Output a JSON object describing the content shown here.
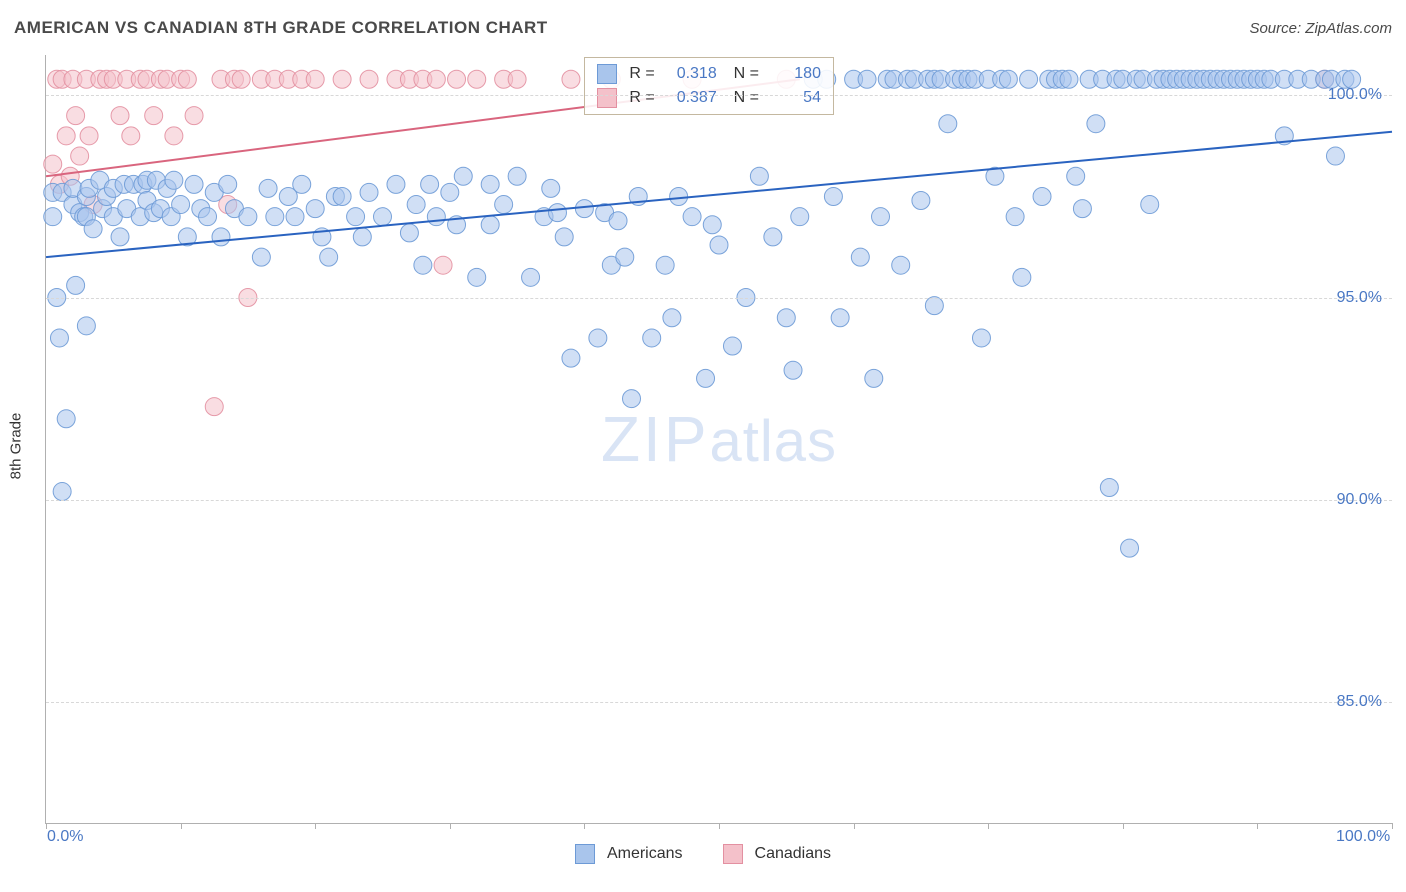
{
  "header": {
    "title": "AMERICAN VS CANADIAN 8TH GRADE CORRELATION CHART",
    "source": "Source: ZipAtlas.com"
  },
  "chart": {
    "type": "scatter",
    "ylabel": "8th Grade",
    "watermark": {
      "zip": "ZIP",
      "atlas": "atlas",
      "color": "#d9e4f5",
      "fontsize": 64
    },
    "xlim": [
      0,
      100
    ],
    "ylim": [
      82,
      101
    ],
    "ytick_positions": [
      85,
      90,
      95,
      100
    ],
    "ytick_labels": [
      "85.0%",
      "90.0%",
      "95.0%",
      "100.0%"
    ],
    "xtick_positions": [
      0,
      10,
      20,
      30,
      40,
      50,
      60,
      70,
      80,
      90,
      100
    ],
    "xtick_labels_shown": {
      "0": "0.0%",
      "100": "100.0%"
    },
    "grid_color": "#d8d8d8",
    "axis_color": "#b0b0b0",
    "ylabel_fontsize": 15,
    "tick_fontsize": 16,
    "tick_label_color": "#4a78c4",
    "background_color": "#ffffff",
    "marker_radius": 9,
    "marker_opacity": 0.55,
    "marker_stroke_opacity": 0.9,
    "series": [
      {
        "name": "Americans",
        "color_fill": "#a9c5ec",
        "color_stroke": "#6d9ad6",
        "R": "0.318",
        "N": "180",
        "regression": {
          "x1": 0,
          "y1": 96.0,
          "x2": 100,
          "y2": 99.1,
          "color": "#2a63c0",
          "width": 2
        },
        "points": [
          [
            0.5,
            97.6
          ],
          [
            0.5,
            97.0
          ],
          [
            0.8,
            95.0
          ],
          [
            1.0,
            94.0
          ],
          [
            1.2,
            97.6
          ],
          [
            1.2,
            90.2
          ],
          [
            1.5,
            92.0
          ],
          [
            2.0,
            97.3
          ],
          [
            2.0,
            97.7
          ],
          [
            2.2,
            95.3
          ],
          [
            2.5,
            97.1
          ],
          [
            2.8,
            97.0
          ],
          [
            3.0,
            97.5
          ],
          [
            3.0,
            97.0
          ],
          [
            3.0,
            94.3
          ],
          [
            3.2,
            97.7
          ],
          [
            3.5,
            96.7
          ],
          [
            4.0,
            97.9
          ],
          [
            4.2,
            97.2
          ],
          [
            4.5,
            97.5
          ],
          [
            5.0,
            97.0
          ],
          [
            5.0,
            97.7
          ],
          [
            5.5,
            96.5
          ],
          [
            5.8,
            97.8
          ],
          [
            6.0,
            97.2
          ],
          [
            6.5,
            97.8
          ],
          [
            7.0,
            97.0
          ],
          [
            7.2,
            97.8
          ],
          [
            7.5,
            97.4
          ],
          [
            7.5,
            97.9
          ],
          [
            8.0,
            97.1
          ],
          [
            8.2,
            97.9
          ],
          [
            8.5,
            97.2
          ],
          [
            9.0,
            97.7
          ],
          [
            9.3,
            97.0
          ],
          [
            9.5,
            97.9
          ],
          [
            10.0,
            97.3
          ],
          [
            10.5,
            96.5
          ],
          [
            11.0,
            97.8
          ],
          [
            11.5,
            97.2
          ],
          [
            12.0,
            97.0
          ],
          [
            12.5,
            97.6
          ],
          [
            13.0,
            96.5
          ],
          [
            13.5,
            97.8
          ],
          [
            14.0,
            97.2
          ],
          [
            15.0,
            97.0
          ],
          [
            16.0,
            96.0
          ],
          [
            16.5,
            97.7
          ],
          [
            17.0,
            97.0
          ],
          [
            18.0,
            97.5
          ],
          [
            18.5,
            97.0
          ],
          [
            19.0,
            97.8
          ],
          [
            20.0,
            97.2
          ],
          [
            20.5,
            96.5
          ],
          [
            21.0,
            96.0
          ],
          [
            21.5,
            97.5
          ],
          [
            22.0,
            97.5
          ],
          [
            23.0,
            97.0
          ],
          [
            23.5,
            96.5
          ],
          [
            24.0,
            97.6
          ],
          [
            25.0,
            97.0
          ],
          [
            26.0,
            97.8
          ],
          [
            27.0,
            96.6
          ],
          [
            27.5,
            97.3
          ],
          [
            28.0,
            95.8
          ],
          [
            28.5,
            97.8
          ],
          [
            29.0,
            97.0
          ],
          [
            30.0,
            97.6
          ],
          [
            30.5,
            96.8
          ],
          [
            31.0,
            98.0
          ],
          [
            32.0,
            95.5
          ],
          [
            33.0,
            97.8
          ],
          [
            33.0,
            96.8
          ],
          [
            34.0,
            97.3
          ],
          [
            35.0,
            98.0
          ],
          [
            36.0,
            95.5
          ],
          [
            37.0,
            97.0
          ],
          [
            37.5,
            97.7
          ],
          [
            38.0,
            97.1
          ],
          [
            38.5,
            96.5
          ],
          [
            39.0,
            93.5
          ],
          [
            40.0,
            97.2
          ],
          [
            41.0,
            94.0
          ],
          [
            41.5,
            97.1
          ],
          [
            42.0,
            95.8
          ],
          [
            42.5,
            96.9
          ],
          [
            43.0,
            96.0
          ],
          [
            43.5,
            92.5
          ],
          [
            44.0,
            97.5
          ],
          [
            45.0,
            94.0
          ],
          [
            46.0,
            95.8
          ],
          [
            46.5,
            94.5
          ],
          [
            47.0,
            97.5
          ],
          [
            48.0,
            97.0
          ],
          [
            49.0,
            93.0
          ],
          [
            49.5,
            96.8
          ],
          [
            50.0,
            96.3
          ],
          [
            51.0,
            93.8
          ],
          [
            52.0,
            95.0
          ],
          [
            53.0,
            98.0
          ],
          [
            54.0,
            96.5
          ],
          [
            55.0,
            94.5
          ],
          [
            55.5,
            93.2
          ],
          [
            56.0,
            97.0
          ],
          [
            57.0,
            100.4
          ],
          [
            58.0,
            100.4
          ],
          [
            58.5,
            97.5
          ],
          [
            59.0,
            94.5
          ],
          [
            60.0,
            100.4
          ],
          [
            60.5,
            96.0
          ],
          [
            61.0,
            100.4
          ],
          [
            61.5,
            93.0
          ],
          [
            62.0,
            97.0
          ],
          [
            62.5,
            100.4
          ],
          [
            63.0,
            100.4
          ],
          [
            63.5,
            95.8
          ],
          [
            64.0,
            100.4
          ],
          [
            64.5,
            100.4
          ],
          [
            65.0,
            97.4
          ],
          [
            65.5,
            100.4
          ],
          [
            66.0,
            100.4
          ],
          [
            66.0,
            94.8
          ],
          [
            66.5,
            100.4
          ],
          [
            67.0,
            99.3
          ],
          [
            67.5,
            100.4
          ],
          [
            68.0,
            100.4
          ],
          [
            68.5,
            100.4
          ],
          [
            69.0,
            100.4
          ],
          [
            69.5,
            94.0
          ],
          [
            70.0,
            100.4
          ],
          [
            70.5,
            98.0
          ],
          [
            71.0,
            100.4
          ],
          [
            71.5,
            100.4
          ],
          [
            72.0,
            97.0
          ],
          [
            72.5,
            95.5
          ],
          [
            73.0,
            100.4
          ],
          [
            74.0,
            97.5
          ],
          [
            74.5,
            100.4
          ],
          [
            75.0,
            100.4
          ],
          [
            75.5,
            100.4
          ],
          [
            76.0,
            100.4
          ],
          [
            76.5,
            98.0
          ],
          [
            77.0,
            97.2
          ],
          [
            77.5,
            100.4
          ],
          [
            78.0,
            99.3
          ],
          [
            78.5,
            100.4
          ],
          [
            79.0,
            90.3
          ],
          [
            79.5,
            100.4
          ],
          [
            80.0,
            100.4
          ],
          [
            80.5,
            88.8
          ],
          [
            81.0,
            100.4
          ],
          [
            81.5,
            100.4
          ],
          [
            82.0,
            97.3
          ],
          [
            82.5,
            100.4
          ],
          [
            83.0,
            100.4
          ],
          [
            83.5,
            100.4
          ],
          [
            84.0,
            100.4
          ],
          [
            84.5,
            100.4
          ],
          [
            85.0,
            100.4
          ],
          [
            85.5,
            100.4
          ],
          [
            86.0,
            100.4
          ],
          [
            86.5,
            100.4
          ],
          [
            87.0,
            100.4
          ],
          [
            87.5,
            100.4
          ],
          [
            88.0,
            100.4
          ],
          [
            88.5,
            100.4
          ],
          [
            89.0,
            100.4
          ],
          [
            89.5,
            100.4
          ],
          [
            90.0,
            100.4
          ],
          [
            90.5,
            100.4
          ],
          [
            91.0,
            100.4
          ],
          [
            92.0,
            100.4
          ],
          [
            92.0,
            99.0
          ],
          [
            93.0,
            100.4
          ],
          [
            94.0,
            100.4
          ],
          [
            95.0,
            100.4
          ],
          [
            95.5,
            100.4
          ],
          [
            95.8,
            98.5
          ],
          [
            96.5,
            100.4
          ],
          [
            97.0,
            100.4
          ]
        ]
      },
      {
        "name": "Canadians",
        "color_fill": "#f4c1ca",
        "color_stroke": "#e390a1",
        "R": "0.387",
        "N": "54",
        "regression": {
          "x1": 0,
          "y1": 98.0,
          "x2": 56,
          "y2": 100.4,
          "color": "#d9657e",
          "width": 2
        },
        "points": [
          [
            0.5,
            98.3
          ],
          [
            0.8,
            100.4
          ],
          [
            1.0,
            97.8
          ],
          [
            1.2,
            100.4
          ],
          [
            1.5,
            99.0
          ],
          [
            1.8,
            98.0
          ],
          [
            2.0,
            100.4
          ],
          [
            2.2,
            99.5
          ],
          [
            2.5,
            98.5
          ],
          [
            3.0,
            100.4
          ],
          [
            3.2,
            99.0
          ],
          [
            3.5,
            97.3
          ],
          [
            4.0,
            100.4
          ],
          [
            4.5,
            100.4
          ],
          [
            5.0,
            100.4
          ],
          [
            5.5,
            99.5
          ],
          [
            6.0,
            100.4
          ],
          [
            6.3,
            99.0
          ],
          [
            7.0,
            100.4
          ],
          [
            7.5,
            100.4
          ],
          [
            8.0,
            99.5
          ],
          [
            8.5,
            100.4
          ],
          [
            9.0,
            100.4
          ],
          [
            9.5,
            99.0
          ],
          [
            10.0,
            100.4
          ],
          [
            10.5,
            100.4
          ],
          [
            11.0,
            99.5
          ],
          [
            12.5,
            92.3
          ],
          [
            13.0,
            100.4
          ],
          [
            13.5,
            97.3
          ],
          [
            14.0,
            100.4
          ],
          [
            14.5,
            100.4
          ],
          [
            15.0,
            95.0
          ],
          [
            16.0,
            100.4
          ],
          [
            17.0,
            100.4
          ],
          [
            18.0,
            100.4
          ],
          [
            19.0,
            100.4
          ],
          [
            20.0,
            100.4
          ],
          [
            22.0,
            100.4
          ],
          [
            24.0,
            100.4
          ],
          [
            26.0,
            100.4
          ],
          [
            27.0,
            100.4
          ],
          [
            28.0,
            100.4
          ],
          [
            29.0,
            100.4
          ],
          [
            29.5,
            95.8
          ],
          [
            30.5,
            100.4
          ],
          [
            32.0,
            100.4
          ],
          [
            34.0,
            100.4
          ],
          [
            35.0,
            100.4
          ],
          [
            39.0,
            100.4
          ],
          [
            42.0,
            100.4
          ],
          [
            48.0,
            100.4
          ],
          [
            55.0,
            100.4
          ],
          [
            95.0,
            100.4
          ]
        ]
      }
    ],
    "legend": {
      "items": [
        {
          "label": "Americans",
          "fill": "#a9c5ec",
          "stroke": "#6d9ad6"
        },
        {
          "label": "Canadians",
          "fill": "#f4c1ca",
          "stroke": "#e390a1"
        }
      ]
    },
    "corr_box": {
      "border_color": "#c4b8a0",
      "rows": [
        {
          "swatch_fill": "#a9c5ec",
          "swatch_stroke": "#6d9ad6",
          "r_label": "R =",
          "r_val": "0.318",
          "n_label": "N =",
          "n_val": "180"
        },
        {
          "swatch_fill": "#f4c1ca",
          "swatch_stroke": "#e390a1",
          "r_label": "R =",
          "r_val": "0.387",
          "n_label": "N =",
          "n_val": "54"
        }
      ]
    }
  }
}
